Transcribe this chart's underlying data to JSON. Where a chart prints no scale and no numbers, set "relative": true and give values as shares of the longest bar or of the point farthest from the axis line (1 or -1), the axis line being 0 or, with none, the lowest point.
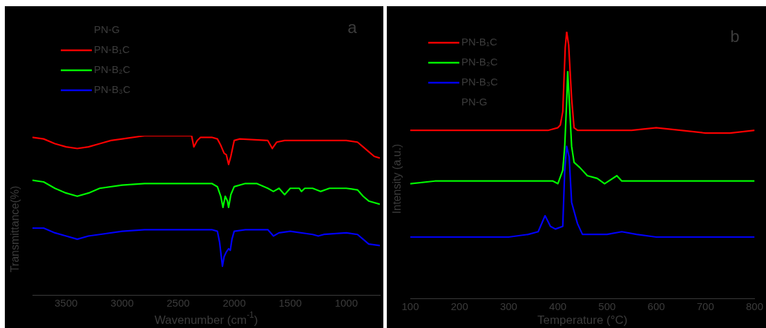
{
  "chart_data": [
    {
      "type": "line",
      "title": "a",
      "xlabel": "Wavenumber (cm$^{-1}$)",
      "ylabel": "Transmittance(%)",
      "relative": true,
      "xlim": [
        3800,
        700
      ],
      "xticks": [
        3500,
        3000,
        2500,
        2000,
        1500,
        1000
      ],
      "tick_labels": "x",
      "grid": false,
      "legend": "top left",
      "marker": "none",
      "line_style": "solid",
      "series": [
        {
          "name": "PN-G"
        },
        {
          "name": "PN-B₁C",
          "color": "#ff0000",
          "x": [
            3800,
            3700,
            3600,
            3500,
            3400,
            3300,
            3200,
            3100,
            3000,
            2800,
            2600,
            2400,
            2380,
            2360,
            2330,
            2300,
            2200,
            2150,
            2120,
            2090,
            2070,
            2050,
            2030,
            2000,
            1950,
            1700,
            1660,
            1620,
            1550,
            1400,
            1200,
            1000,
            900,
            850,
            800,
            750,
            700
          ],
          "values": [
            0.99,
            0.98,
            0.95,
            0.93,
            0.92,
            0.93,
            0.95,
            0.97,
            0.98,
            1,
            1,
            1,
            1,
            0.93,
            0.97,
            0.99,
            0.99,
            0.98,
            0.94,
            0.89,
            0.88,
            0.82,
            0.87,
            0.97,
            0.98,
            0.97,
            0.92,
            0.96,
            0.97,
            0.97,
            0.97,
            0.97,
            0.96,
            0.93,
            0.9,
            0.87,
            0.86
          ]
        },
        {
          "name": "PN-B₂C",
          "color": "#00ff00",
          "x": [
            3800,
            3700,
            3600,
            3500,
            3400,
            3300,
            3200,
            3000,
            2800,
            2400,
            2200,
            2150,
            2120,
            2100,
            2080,
            2060,
            2050,
            2030,
            2000,
            1900,
            1800,
            1700,
            1650,
            1600,
            1550,
            1500,
            1420,
            1400,
            1370,
            1300,
            1230,
            1150,
            1000,
            900,
            850,
            800,
            700
          ],
          "values": [
            0.72,
            0.71,
            0.67,
            0.64,
            0.62,
            0.64,
            0.67,
            0.69,
            0.7,
            0.7,
            0.7,
            0.68,
            0.62,
            0.55,
            0.62,
            0.59,
            0.55,
            0.63,
            0.68,
            0.7,
            0.7,
            0.67,
            0.65,
            0.67,
            0.63,
            0.67,
            0.67,
            0.65,
            0.67,
            0.67,
            0.65,
            0.67,
            0.67,
            0.66,
            0.62,
            0.59,
            0.57
          ]
        },
        {
          "name": "PN-B₃C",
          "color": "#0000ff",
          "x": [
            3800,
            3700,
            3600,
            3500,
            3400,
            3300,
            3200,
            3000,
            2800,
            2400,
            2200,
            2150,
            2130,
            2115,
            2105,
            2090,
            2070,
            2050,
            2035,
            2020,
            2000,
            1900,
            1700,
            1650,
            1600,
            1500,
            1300,
            1250,
            1200,
            1000,
            900,
            850,
            800,
            700
          ],
          "values": [
            0.42,
            0.42,
            0.39,
            0.37,
            0.35,
            0.37,
            0.38,
            0.4,
            0.41,
            0.41,
            0.41,
            0.4,
            0.33,
            0.24,
            0.18,
            0.24,
            0.27,
            0.29,
            0.28,
            0.35,
            0.4,
            0.41,
            0.41,
            0.37,
            0.39,
            0.4,
            0.38,
            0.37,
            0.38,
            0.39,
            0.38,
            0.35,
            0.32,
            0.31
          ]
        }
      ]
    },
    {
      "type": "line",
      "title": "b",
      "xlabel": "Temperature (°C)",
      "ylabel": "Intensity (a.u.)",
      "relative": true,
      "xlim": [
        100,
        800
      ],
      "xticks": [
        100,
        200,
        300,
        400,
        500,
        600,
        700,
        800
      ],
      "tick_labels": "x",
      "grid": false,
      "legend": "top left",
      "marker": "none",
      "line_style": "solid",
      "series": [
        {
          "name": "PN-B₁C",
          "color": "#ff0000",
          "x": [
            100,
            200,
            300,
            380,
            400,
            405,
            410,
            415,
            418,
            422,
            428,
            433,
            440,
            500,
            550,
            600,
            650,
            700,
            750,
            800
          ],
          "values": [
            0.63,
            0.63,
            0.63,
            0.63,
            0.64,
            0.65,
            0.7,
            0.94,
            1,
            0.95,
            0.75,
            0.64,
            0.63,
            0.63,
            0.63,
            0.64,
            0.63,
            0.62,
            0.62,
            0.63
          ]
        },
        {
          "name": "PN-B₂C",
          "color": "#00ff00",
          "x": [
            100,
            150,
            200,
            300,
            350,
            390,
            400,
            410,
            414,
            418,
            420,
            423,
            428,
            433,
            445,
            460,
            480,
            495,
            520,
            530,
            600,
            700,
            800
          ],
          "values": [
            0.43,
            0.44,
            0.44,
            0.44,
            0.44,
            0.44,
            0.43,
            0.48,
            0.57,
            0.74,
            0.85,
            0.75,
            0.57,
            0.51,
            0.49,
            0.46,
            0.45,
            0.43,
            0.46,
            0.44,
            0.44,
            0.44,
            0.44
          ]
        },
        {
          "name": "PN-B₃C",
          "color": "#0000ff",
          "x": [
            100,
            200,
            300,
            340,
            360,
            374,
            385,
            395,
            410,
            414,
            418,
            423,
            428,
            440,
            450,
            500,
            530,
            560,
            600,
            700,
            800
          ],
          "values": [
            0.23,
            0.23,
            0.23,
            0.24,
            0.25,
            0.31,
            0.27,
            0.26,
            0.27,
            0.48,
            0.57,
            0.53,
            0.36,
            0.28,
            0.24,
            0.24,
            0.25,
            0.24,
            0.23,
            0.23,
            0.23
          ]
        },
        {
          "name": "PN-G"
        }
      ]
    }
  ]
}
